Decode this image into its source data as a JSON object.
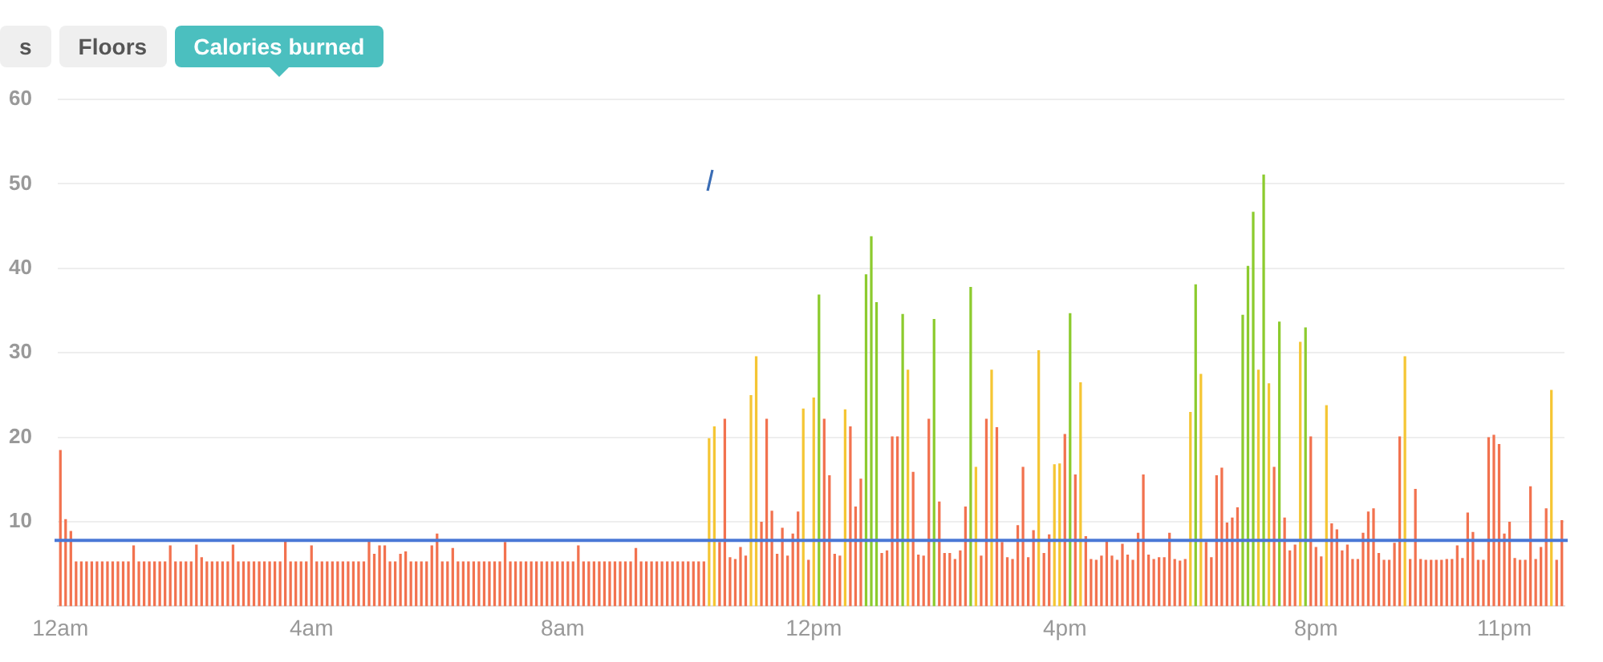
{
  "chart_data": {
    "type": "bar",
    "annotations": [
      "s",
      "Floors",
      "Calories burned"
    ],
    "categories": [
      "12am",
      null,
      null,
      null,
      null,
      null,
      null,
      null,
      null,
      null,
      null,
      null,
      null,
      null,
      null,
      null,
      null,
      null,
      null,
      null,
      null,
      null,
      null,
      null,
      null,
      null,
      null,
      null,
      null,
      null,
      null,
      null,
      null,
      null,
      null,
      null,
      null,
      null,
      null,
      null,
      null,
      null,
      null,
      null,
      null,
      null,
      null,
      null,
      "4am",
      null,
      null,
      null,
      null,
      null,
      null,
      null,
      null,
      null,
      null,
      null,
      null,
      null,
      null,
      null,
      null,
      null,
      null,
      null,
      null,
      null,
      null,
      null,
      null,
      null,
      null,
      null,
      null,
      null,
      null,
      null,
      null,
      null,
      null,
      null,
      null,
      null,
      null,
      null,
      null,
      null,
      null,
      null,
      null,
      null,
      null,
      null,
      "8am",
      null,
      null,
      null,
      null,
      null,
      null,
      null,
      null,
      null,
      null,
      null,
      null,
      null,
      null,
      null,
      null,
      null,
      null,
      null,
      null,
      null,
      null,
      null,
      null,
      null,
      null,
      null,
      null,
      null,
      null,
      null,
      null,
      null,
      null,
      null,
      null,
      null,
      null,
      null,
      null,
      null,
      null,
      null,
      null,
      null,
      null,
      null,
      "12pm",
      null,
      null,
      null,
      null,
      null,
      null,
      null,
      null,
      null,
      null,
      null,
      null,
      null,
      null,
      null,
      null,
      null,
      null,
      null,
      null,
      null,
      null,
      null,
      null,
      null,
      null,
      null,
      null,
      null,
      null,
      null,
      null,
      null,
      null,
      null,
      null,
      null,
      null,
      null,
      null,
      null,
      null,
      null,
      null,
      null,
      null,
      null,
      "4pm",
      null,
      null,
      null,
      null,
      null,
      null,
      null,
      null,
      null,
      null,
      null,
      null,
      null,
      null,
      null,
      null,
      null,
      null,
      null,
      null,
      null,
      null,
      null,
      null,
      null,
      null,
      null,
      null,
      null,
      null,
      null,
      null,
      null,
      null,
      null,
      null,
      null,
      null,
      null,
      null,
      null,
      null,
      null,
      null,
      null,
      null,
      null,
      "8pm",
      null,
      null,
      null,
      null,
      null,
      null,
      null,
      null,
      null,
      null,
      null,
      null,
      null,
      null,
      null,
      null,
      null,
      null,
      null,
      null,
      null,
      null,
      null,
      null,
      null,
      null,
      null,
      null,
      null,
      null,
      null,
      null,
      null,
      null,
      null,
      "11pm",
      null,
      null,
      null,
      null,
      null,
      null,
      null,
      null,
      null,
      null,
      null
    ],
    "values": [
      18.5,
      10.3,
      8.9,
      5.3,
      5.3,
      5.3,
      5.3,
      5.3,
      5.3,
      5.3,
      5.3,
      5.3,
      5.3,
      5.3,
      7.2,
      5.3,
      5.3,
      5.3,
      5.3,
      5.3,
      5.3,
      7.2,
      5.3,
      5.3,
      5.3,
      5.3,
      7.3,
      5.8,
      5.3,
      5.3,
      5.3,
      5.3,
      5.3,
      7.3,
      5.3,
      5.3,
      5.3,
      5.3,
      5.3,
      5.3,
      5.3,
      5.3,
      5.3,
      7.9,
      5.3,
      5.3,
      5.3,
      5.3,
      7.2,
      5.3,
      5.3,
      5.3,
      5.3,
      5.3,
      5.3,
      5.3,
      5.3,
      5.3,
      5.3,
      7.9,
      6.2,
      7.2,
      7.2,
      5.3,
      5.3,
      6.2,
      6.5,
      5.3,
      5.3,
      5.3,
      5.3,
      7.2,
      8.6,
      5.3,
      5.3,
      6.9,
      5.3,
      5.3,
      5.3,
      5.3,
      5.3,
      5.3,
      5.3,
      5.3,
      5.3,
      7.6,
      5.3,
      5.3,
      5.3,
      5.3,
      5.3,
      5.3,
      5.3,
      5.3,
      5.3,
      5.3,
      5.3,
      5.3,
      5.3,
      7.2,
      5.3,
      5.3,
      5.3,
      5.3,
      5.3,
      5.3,
      5.3,
      5.3,
      5.3,
      5.3,
      6.9,
      5.3,
      5.3,
      5.3,
      5.3,
      5.3,
      5.3,
      5.3,
      5.3,
      5.3,
      5.3,
      5.3,
      5.3,
      5.3,
      19.9,
      21.3,
      7.6,
      22.2,
      5.8,
      5.6,
      7.0,
      6.0,
      25.0,
      29.6,
      10.0,
      22.2,
      11.3,
      6.2,
      9.3,
      6.0,
      8.6,
      11.2,
      23.4,
      5.5,
      24.7,
      36.9,
      22.2,
      15.5,
      6.2,
      6.0,
      23.3,
      21.3,
      11.8,
      15.1,
      39.3,
      43.8,
      36.0,
      6.3,
      6.6,
      20.1,
      20.1,
      34.6,
      28.0,
      15.9,
      6.1,
      6.0,
      22.2,
      34.0,
      12.4,
      6.3,
      6.3,
      5.6,
      6.6,
      11.8,
      37.8,
      16.5,
      6.0,
      22.2,
      28.0,
      21.2,
      7.6,
      5.8,
      5.6,
      9.6,
      16.5,
      5.8,
      9.0,
      30.3,
      6.3,
      8.5,
      16.8,
      16.9,
      20.4,
      34.7,
      15.6,
      26.5,
      8.3,
      5.6,
      5.5,
      6.0,
      7.8,
      6.0,
      5.5,
      7.4,
      6.1,
      5.5,
      8.7,
      15.6,
      6.1,
      5.6,
      5.8,
      5.8,
      8.7,
      5.6,
      5.4,
      5.6,
      23.0,
      38.1,
      27.5,
      7.6,
      5.8,
      15.5,
      16.4,
      9.9,
      10.5,
      11.7,
      34.5,
      40.3,
      46.7,
      28.0,
      51.1,
      26.4,
      16.5,
      33.7,
      10.5,
      6.6,
      7.3,
      31.3,
      33.0,
      20.1,
      7.0,
      5.9,
      23.8,
      9.8,
      9.1,
      6.6,
      7.3,
      5.6,
      5.6,
      8.7,
      11.2,
      11.6,
      6.3,
      5.5,
      5.5,
      7.5,
      20.1,
      29.6,
      5.6,
      13.9,
      5.6,
      5.5,
      5.5,
      5.5,
      5.5,
      5.6,
      5.6,
      7.2,
      5.7,
      11.1,
      8.8,
      5.5,
      5.5,
      20.0,
      20.3,
      19.2,
      8.6,
      10.0,
      5.7,
      5.5,
      5.5,
      14.2,
      5.6,
      7.0,
      11.6,
      25.6,
      5.5,
      10.2
    ],
    "colors": [
      "#f2724f",
      "#f2724f",
      "#f2724f",
      "#f2724f",
      "#f2724f",
      "#f2724f",
      "#f2724f",
      "#f2724f",
      "#f2724f",
      "#f2724f",
      "#f2724f",
      "#f2724f",
      "#f2724f",
      "#f2724f",
      "#f2724f",
      "#f2724f",
      "#f2724f",
      "#f2724f",
      "#f2724f",
      "#f2724f",
      "#f2724f",
      "#f2724f",
      "#f2724f",
      "#f2724f",
      "#f2724f",
      "#f2724f",
      "#f2724f",
      "#f2724f",
      "#f2724f",
      "#f2724f",
      "#f2724f",
      "#f2724f",
      "#f2724f",
      "#f2724f",
      "#f2724f",
      "#f2724f",
      "#f2724f",
      "#f2724f",
      "#f2724f",
      "#f2724f",
      "#f2724f",
      "#f2724f",
      "#f2724f",
      "#f2724f",
      "#f2724f",
      "#f2724f",
      "#f2724f",
      "#f2724f",
      "#f2724f",
      "#f2724f",
      "#f2724f",
      "#f2724f",
      "#f2724f",
      "#f2724f",
      "#f2724f",
      "#f2724f",
      "#f2724f",
      "#f2724f",
      "#f2724f",
      "#f2724f",
      "#f2724f",
      "#f2724f",
      "#f2724f",
      "#f2724f",
      "#f2724f",
      "#f2724f",
      "#f2724f",
      "#f2724f",
      "#f2724f",
      "#f2724f",
      "#f2724f",
      "#f2724f",
      "#f2724f",
      "#f2724f",
      "#f2724f",
      "#f2724f",
      "#f2724f",
      "#f2724f",
      "#f2724f",
      "#f2724f",
      "#f2724f",
      "#f2724f",
      "#f2724f",
      "#f2724f",
      "#f2724f",
      "#f2724f",
      "#f2724f",
      "#f2724f",
      "#f2724f",
      "#f2724f",
      "#f2724f",
      "#f2724f",
      "#f2724f",
      "#f2724f",
      "#f2724f",
      "#f2724f",
      "#f2724f",
      "#f2724f",
      "#f2724f",
      "#f2724f",
      "#f2724f",
      "#f2724f",
      "#f2724f",
      "#f2724f",
      "#f2724f",
      "#f2724f",
      "#f2724f",
      "#f2724f",
      "#f2724f",
      "#f2724f",
      "#f2724f",
      "#f2724f",
      "#f2724f",
      "#f2724f",
      "#f2724f",
      "#f2724f",
      "#f2724f",
      "#f2724f",
      "#f2724f",
      "#f2724f",
      "#f2724f",
      "#f2724f",
      "#f2724f",
      "#f2724f",
      "#f5c634",
      "#f5c634",
      "#f2724f",
      "#f2724f",
      "#f2724f",
      "#f2724f",
      "#f2724f",
      "#f2724f",
      "#f5c634",
      "#f5c634",
      "#f2724f",
      "#f2724f",
      "#f2724f",
      "#f2724f",
      "#f2724f",
      "#f2724f",
      "#f2724f",
      "#f2724f",
      "#f5c634",
      "#f2724f",
      "#f5c634",
      "#8ccb2e",
      "#f2724f",
      "#f2724f",
      "#f2724f",
      "#f2724f",
      "#f5c634",
      "#f2724f",
      "#f2724f",
      "#f2724f",
      "#8ccb2e",
      "#8ccb2e",
      "#8ccb2e",
      "#f2724f",
      "#f2724f",
      "#f2724f",
      "#f2724f",
      "#8ccb2e",
      "#f5c634",
      "#f2724f",
      "#f2724f",
      "#f2724f",
      "#f2724f",
      "#8ccb2e",
      "#f2724f",
      "#f2724f",
      "#f2724f",
      "#f2724f",
      "#f2724f",
      "#f2724f",
      "#8ccb2e",
      "#f5c634",
      "#f2724f",
      "#f2724f",
      "#f5c634",
      "#f2724f",
      "#f2724f",
      "#f2724f",
      "#f2724f",
      "#f2724f",
      "#f2724f",
      "#f2724f",
      "#f2724f",
      "#f5c634",
      "#f2724f",
      "#f2724f",
      "#f5c634",
      "#f5c634",
      "#f2724f",
      "#8ccb2e",
      "#f2724f",
      "#f5c634",
      "#f2724f",
      "#f2724f",
      "#f2724f",
      "#f2724f",
      "#f2724f",
      "#f2724f",
      "#f2724f",
      "#f2724f",
      "#f2724f",
      "#f2724f",
      "#f2724f",
      "#f2724f",
      "#f2724f",
      "#f2724f",
      "#f2724f",
      "#f2724f",
      "#f2724f",
      "#f2724f",
      "#f2724f",
      "#f2724f",
      "#f5c634",
      "#8ccb2e",
      "#f5c634",
      "#f2724f",
      "#f2724f",
      "#f2724f",
      "#f2724f",
      "#f2724f",
      "#f2724f",
      "#f2724f",
      "#8ccb2e",
      "#8ccb2e",
      "#8ccb2e",
      "#f5c634",
      "#8ccb2e",
      "#f5c634",
      "#f2724f",
      "#8ccb2e",
      "#f2724f",
      "#f2724f",
      "#f2724f",
      "#f5c634",
      "#8ccb2e",
      "#f2724f",
      "#f2724f",
      "#f2724f",
      "#f5c634",
      "#f2724f",
      "#f2724f",
      "#f2724f",
      "#f2724f",
      "#f2724f",
      "#f2724f",
      "#f2724f",
      "#f2724f",
      "#f2724f",
      "#f2724f",
      "#f2724f",
      "#f2724f",
      "#f2724f",
      "#f2724f",
      "#f5c634",
      "#f2724f",
      "#f2724f",
      "#f2724f",
      "#f2724f",
      "#f2724f",
      "#f2724f",
      "#f2724f",
      "#f2724f",
      "#f2724f",
      "#f2724f",
      "#f2724f",
      "#f2724f",
      "#f2724f",
      "#f2724f",
      "#f2724f",
      "#f2724f",
      "#f2724f",
      "#f2724f",
      "#f2724f",
      "#f2724f",
      "#f2724f",
      "#f2724f",
      "#f2724f",
      "#f2724f",
      "#f2724f",
      "#f2724f",
      "#f2724f",
      "#f5c634",
      "#f2724f",
      "#f2724f"
    ],
    "ylim": [
      0,
      60
    ],
    "yticks": [
      10,
      20,
      30,
      40,
      50,
      60
    ],
    "grid": "y",
    "ref_lines": [
      {
        "axis": "y",
        "value": 7.8,
        "color": "#4a78d6"
      }
    ]
  }
}
